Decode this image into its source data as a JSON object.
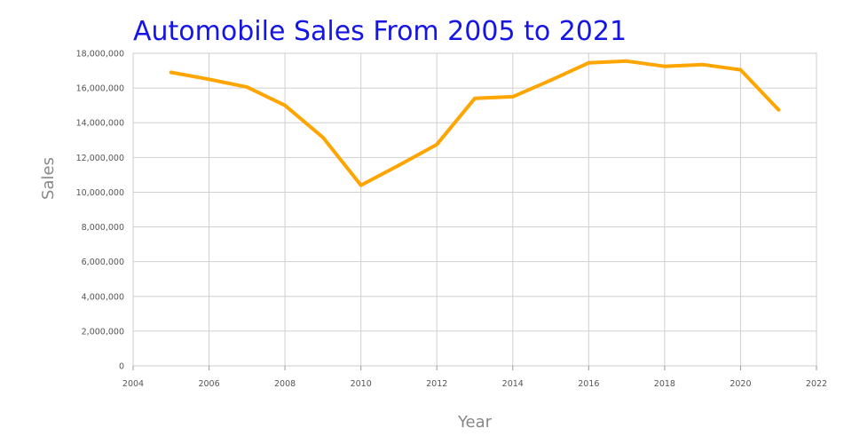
{
  "chart_data": {
    "type": "line",
    "title": "Automobile Sales From 2005 to 2021",
    "xlabel": "Year",
    "ylabel": "Sales",
    "xlim": [
      2004,
      2022
    ],
    "ylim": [
      0,
      18000000
    ],
    "x_ticks": [
      "2004",
      "2006",
      "2008",
      "2010",
      "2012",
      "2014",
      "2016",
      "2018",
      "2020",
      "2022"
    ],
    "x_tick_values": [
      2004,
      2006,
      2008,
      2010,
      2012,
      2014,
      2016,
      2018,
      2020,
      2022
    ],
    "y_ticks": [
      "0",
      "2,000,000",
      "4,000,000",
      "6,000,000",
      "8,000,000",
      "10,000,000",
      "12,000,000",
      "14,000,000",
      "16,000,000",
      "18,000,000"
    ],
    "y_tick_values": [
      0,
      2000000,
      4000000,
      6000000,
      8000000,
      10000000,
      12000000,
      14000000,
      16000000,
      18000000
    ],
    "grid": true,
    "legend": "none",
    "series": [
      {
        "color": "#ffa500",
        "x": [
          2005,
          2006,
          2007,
          2008,
          2009,
          2010,
          2011,
          2012,
          2013,
          2014,
          2015,
          2016,
          2017,
          2018,
          2019,
          2020,
          2021
        ],
        "values": [
          16900000,
          16500000,
          16050000,
          15000000,
          13150000,
          10400000,
          11550000,
          12750000,
          15400000,
          15500000,
          16450000,
          17450000,
          17550000,
          17250000,
          17350000,
          17050000,
          14750000
        ]
      }
    ]
  }
}
